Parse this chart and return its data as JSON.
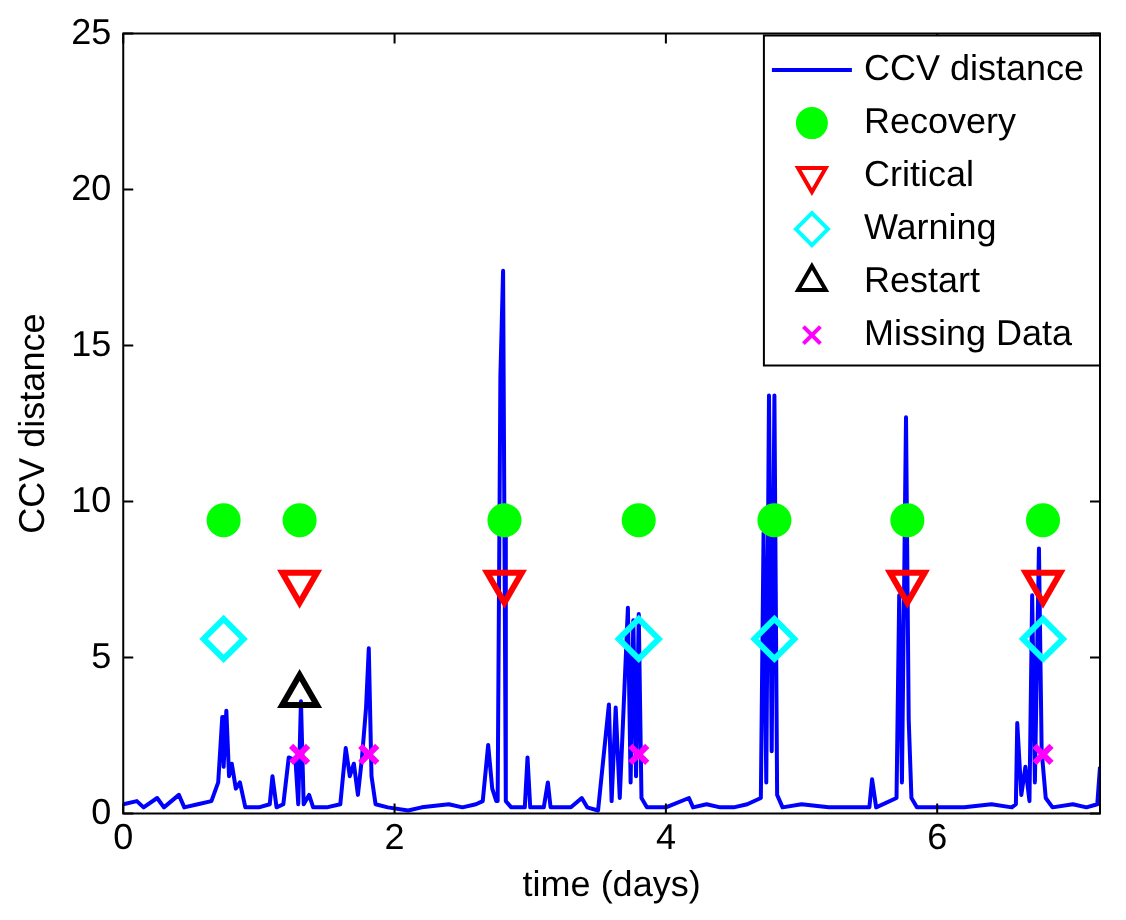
{
  "chart_data": {
    "type": "line",
    "xlabel": "time (days)",
    "ylabel": "CCV distance",
    "xlim": [
      0,
      7.2
    ],
    "xticks": [
      0,
      2,
      4,
      6
    ],
    "ylim": [
      0,
      25
    ],
    "yticks": [
      0,
      5,
      10,
      15,
      20,
      25
    ],
    "grid": false,
    "legend": "top right",
    "series": [
      {
        "name": "CCV distance",
        "type": "line",
        "color": "#0000ff",
        "marker": "none",
        "line_style": "solid",
        "x": [
          0,
          0.1,
          0.15,
          0.25,
          0.3,
          0.41,
          0.45,
          0.55,
          0.65,
          0.7,
          0.73,
          0.74,
          0.76,
          0.78,
          0.8,
          0.83,
          0.86,
          0.9,
          1.0,
          1.08,
          1.1,
          1.13,
          1.18,
          1.22,
          1.27,
          1.29,
          1.31,
          1.33,
          1.37,
          1.4,
          1.5,
          1.6,
          1.64,
          1.67,
          1.7,
          1.73,
          1.76,
          1.79,
          1.81,
          1.83,
          1.86,
          1.95,
          2.1,
          2.2,
          2.4,
          2.5,
          2.6,
          2.65,
          2.69,
          2.72,
          2.75,
          2.76,
          2.78,
          2.8,
          2.81,
          2.82,
          2.86,
          2.96,
          2.98,
          3.0,
          3.1,
          3.13,
          3.15,
          3.3,
          3.38,
          3.42,
          3.5,
          3.58,
          3.6,
          3.63,
          3.66,
          3.72,
          3.74,
          3.76,
          3.78,
          3.8,
          3.82,
          3.86,
          4.0,
          4.17,
          4.2,
          4.3,
          4.4,
          4.5,
          4.6,
          4.7,
          4.72,
          4.74,
          4.76,
          4.78,
          4.8,
          4.82,
          4.86,
          5.0,
          5.2,
          5.5,
          5.52,
          5.55,
          5.7,
          5.72,
          5.74,
          5.77,
          5.79,
          5.81,
          5.85,
          6.0,
          6.2,
          6.4,
          6.55,
          6.58,
          6.59,
          6.62,
          6.65,
          6.68,
          6.7,
          6.72,
          6.75,
          6.77,
          6.8,
          6.85,
          7.0,
          7.1,
          7.18,
          7.2
        ],
        "values": [
          0.3,
          0.4,
          0.2,
          0.5,
          0.2,
          0.6,
          0.2,
          0.3,
          0.4,
          1.0,
          3.1,
          1.5,
          3.3,
          1.2,
          1.6,
          0.8,
          1.0,
          0.2,
          0.2,
          0.3,
          1.2,
          0.2,
          0.3,
          1.8,
          1.7,
          0.3,
          3.6,
          0.3,
          0.6,
          0.2,
          0.2,
          0.3,
          2.1,
          1.2,
          1.6,
          0.6,
          1.8,
          3.4,
          5.3,
          1.2,
          0.3,
          0.2,
          0.1,
          0.2,
          0.3,
          0.2,
          0.3,
          0.4,
          2.2,
          0.8,
          0.4,
          0.5,
          14.0,
          17.4,
          9.0,
          0.4,
          0.2,
          0.2,
          1.8,
          0.2,
          0.2,
          1.0,
          0.2,
          0.2,
          0.5,
          0.2,
          0.1,
          3.5,
          0.4,
          3.4,
          0.5,
          6.6,
          1.0,
          6.2,
          1.2,
          6.4,
          0.5,
          0.2,
          0.2,
          0.5,
          0.2,
          0.3,
          0.2,
          0.2,
          0.3,
          0.5,
          9.0,
          1.0,
          13.4,
          2.0,
          13.4,
          0.6,
          0.2,
          0.3,
          0.2,
          0.2,
          1.1,
          0.2,
          0.5,
          7.0,
          1.0,
          12.7,
          3.0,
          0.5,
          0.2,
          0.2,
          0.2,
          0.3,
          0.2,
          0.3,
          2.9,
          0.6,
          1.5,
          0.4,
          7.0,
          1.0,
          8.5,
          2.0,
          0.5,
          0.2,
          0.3,
          0.2,
          0.3,
          1.5
        ]
      },
      {
        "name": "Recovery",
        "type": "scatter",
        "color": "#00ff00",
        "marker": "circle",
        "x": [
          0.74,
          1.3,
          2.81,
          3.8,
          4.8,
          5.78,
          6.78
        ],
        "values": [
          9.4,
          9.4,
          9.4,
          9.4,
          9.4,
          9.4,
          9.4
        ]
      },
      {
        "name": "Critical",
        "type": "scatter",
        "color": "#ff0000",
        "marker": "triangle_down",
        "x": [
          1.3,
          2.81,
          5.78,
          6.78
        ],
        "values": [
          7.4,
          7.4,
          7.4,
          7.4
        ]
      },
      {
        "name": "Warning",
        "type": "scatter",
        "color": "#00ffff",
        "marker": "diamond",
        "x": [
          0.74,
          3.8,
          4.8,
          6.78
        ],
        "values": [
          5.6,
          5.6,
          5.6,
          5.6
        ]
      },
      {
        "name": "Restart",
        "type": "scatter",
        "color": "#000000",
        "marker": "triangle",
        "x": [
          1.3
        ],
        "values": [
          3.8
        ]
      },
      {
        "name": "Missing Data",
        "type": "scatter",
        "color": "#ff00ff",
        "marker": "cross",
        "x": [
          1.3,
          1.81,
          3.8,
          6.78
        ],
        "values": [
          1.9,
          1.9,
          1.9,
          1.9
        ]
      }
    ]
  }
}
